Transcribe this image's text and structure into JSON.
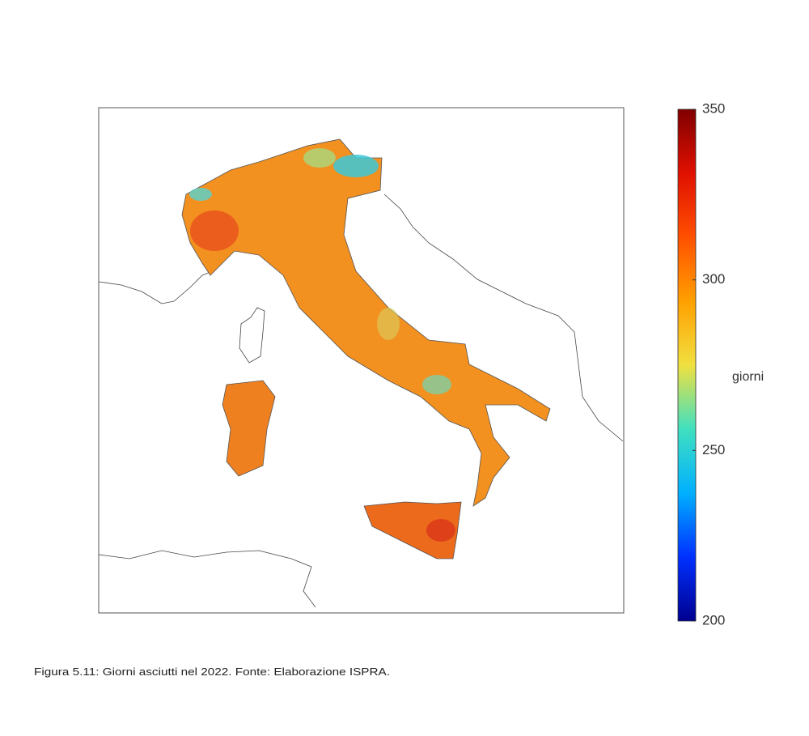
{
  "colorbar": {
    "label": "giorni",
    "lim": [
      200,
      350
    ],
    "ticks": [
      200,
      250,
      300,
      350
    ],
    "colormap": [
      "#00008f",
      "#0030ff",
      "#00b0ff",
      "#40e0c0",
      "#f0e040",
      "#ffa000",
      "#ff5000",
      "#e01000",
      "#800000"
    ]
  },
  "caption": "Figura 5.11: Giorni asciutti nel 2022. Fonte: Elaborazione ISPRA."
}
